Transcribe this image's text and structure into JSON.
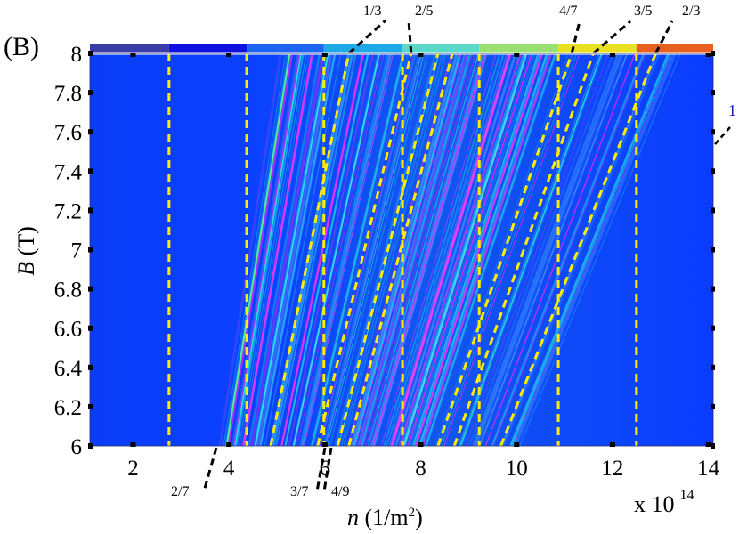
{
  "panel_label": "(B)",
  "colors": {
    "background_field": "#0a3cff",
    "stripe_light": "#2aa6ff",
    "stripe_cyan": "#25e8e0",
    "stripe_magenta": "#ff25ff",
    "dashed_line": "#ffee00",
    "fraction_line": "#000000",
    "nu1_label": "#1a1aa8"
  },
  "chart_data": {
    "type": "heatmap",
    "title": "",
    "xlabel": "n (1/m 2)",
    "xlabel_parts": {
      "var": "n",
      "unit_open": "(1/m",
      "sup": "2",
      "unit_close": ")"
    },
    "ylabel": "B (T)",
    "ylabel_parts": {
      "var": "B",
      "unit": "(T)"
    },
    "x_multiplier": "x 10",
    "x_multiplier_exp": "14",
    "xlim": [
      1.1,
      14.1
    ],
    "ylim": [
      6,
      8
    ],
    "x_ticks": [
      2,
      4,
      6,
      8,
      10,
      12,
      14
    ],
    "y_ticks": [
      6,
      6.2,
      6.4,
      6.6,
      6.8,
      7,
      7.2,
      7.4,
      7.6,
      7.8,
      8
    ],
    "y_tick_labels": [
      "6",
      "6.2",
      "6.4",
      "6.6",
      "6.8",
      "7",
      "7.2",
      "7.4",
      "7.6",
      "7.8",
      "8"
    ],
    "vertical_dashed_lines_x": [
      2.75,
      4.37,
      5.98,
      7.62,
      9.22,
      10.87,
      12.5
    ],
    "colorbar_segments": [
      {
        "x0": 1.1,
        "x1": 2.75,
        "color": "#3a3ca8"
      },
      {
        "x0": 2.75,
        "x1": 4.37,
        "color": "#1010e0"
      },
      {
        "x0": 4.37,
        "x1": 5.98,
        "color": "#1e64f2"
      },
      {
        "x0": 5.98,
        "x1": 7.62,
        "color": "#1ea8e8"
      },
      {
        "x0": 7.62,
        "x1": 9.22,
        "color": "#5ad8c8"
      },
      {
        "x0": 9.22,
        "x1": 10.87,
        "color": "#9ae070"
      },
      {
        "x0": 10.87,
        "x1": 12.5,
        "color": "#e8e020"
      },
      {
        "x0": 12.5,
        "x1": 14.1,
        "color": "#e86020"
      }
    ],
    "filling_factor_lines": [
      {
        "label": "1/3",
        "n_at_B6": 4.87,
        "n_at_B8": 6.5
      },
      {
        "label": "2/5",
        "n_at_B6": 5.85,
        "n_at_B8": 7.8
      },
      {
        "label": "3/7",
        "n_at_B6": 6.27,
        "n_at_B8": 8.36
      },
      {
        "label": "4/9",
        "n_at_B6": 6.5,
        "n_at_B8": 8.66
      },
      {
        "label": "4/7",
        "n_at_B6": 8.36,
        "n_at_B8": 11.15
      },
      {
        "label": "3/5",
        "n_at_B6": 8.7,
        "n_at_B8": 11.6
      },
      {
        "label": "2/3",
        "n_at_B6": 9.67,
        "n_at_B8": 12.9
      }
    ],
    "fraction_labels_top": [
      "1/3",
      "2/5",
      "4/7",
      "3/5",
      "2/3"
    ],
    "fraction_labels_bottom": [
      "2/7",
      "3/7",
      "4/9"
    ],
    "side_label": "1"
  }
}
